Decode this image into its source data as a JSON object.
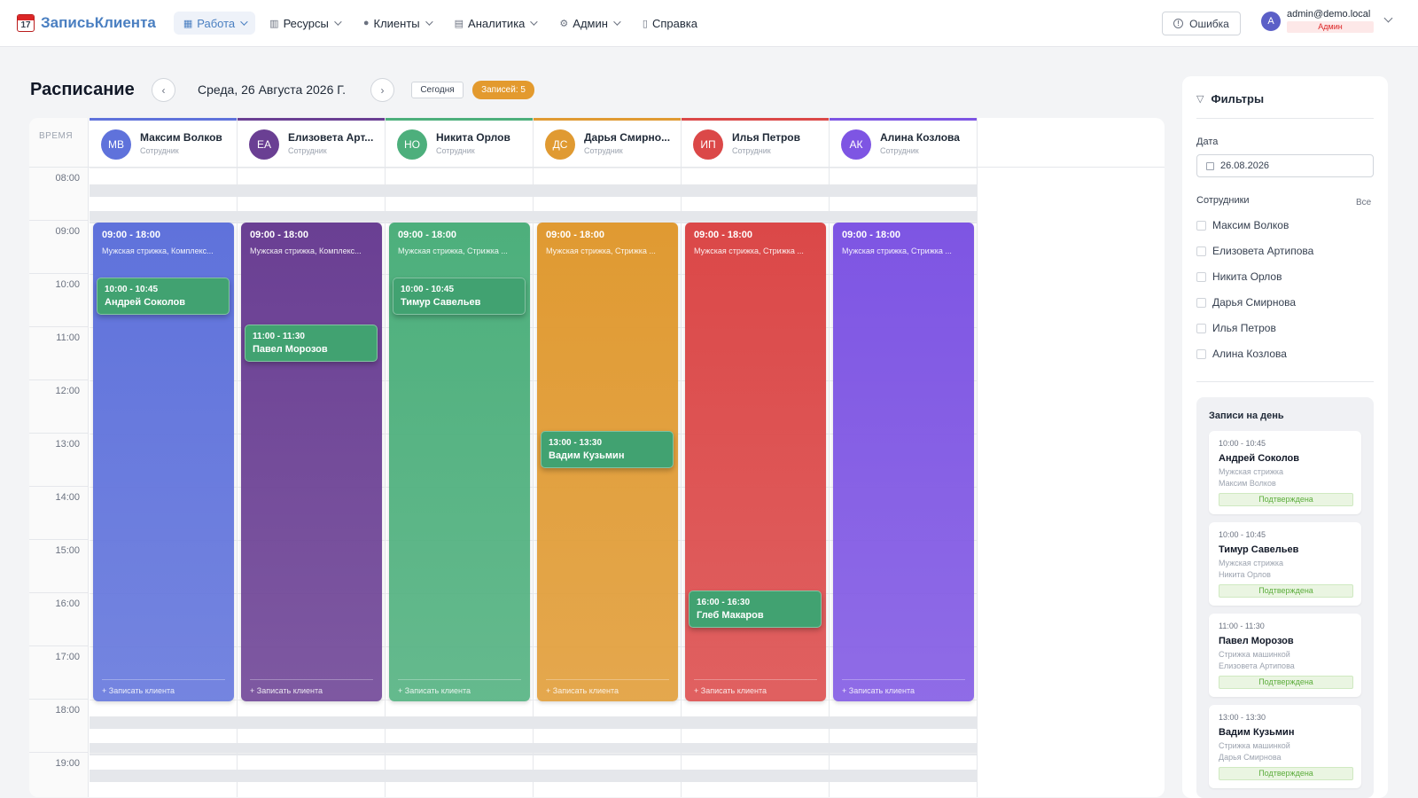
{
  "app": {
    "name": "ЗаписьКлиента",
    "logo_glyph": "17"
  },
  "nav": [
    {
      "label": "Работа",
      "icon": "calendar-icon",
      "active": true
    },
    {
      "label": "Ресурсы",
      "icon": "building-icon",
      "active": false
    },
    {
      "label": "Клиенты",
      "icon": "person-icon",
      "active": false
    },
    {
      "label": "Аналитика",
      "icon": "chart-icon",
      "active": false
    },
    {
      "label": "Админ",
      "icon": "gear-icon",
      "active": false
    },
    {
      "label": "Справка",
      "icon": "document-icon",
      "active": false
    }
  ],
  "error_button": {
    "label": "Ошибка",
    "icon": "info-icon"
  },
  "user": {
    "avatar": "A",
    "email": "admin@demo.local",
    "role": "Админ"
  },
  "schedule": {
    "title": "Расписание",
    "date_label": "Среда, 26 Августа 2026 Г.",
    "today_label": "Сегодня",
    "count_badge": "Записей: 5",
    "time_header": "ВРЕМЯ",
    "hours": [
      "08:00",
      "09:00",
      "10:00",
      "11:00",
      "12:00",
      "13:00",
      "14:00",
      "15:00",
      "16:00",
      "17:00",
      "18:00",
      "19:00"
    ]
  },
  "employees": [
    {
      "initials": "МВ",
      "name": "Максим Волков",
      "role": "Сотрудник",
      "color": "#5f72db",
      "shift": {
        "time": "09:00 - 18:00",
        "services": "Мужская стрижка, Комплекс...",
        "add": "+ Записать клиента"
      },
      "appointments": [
        {
          "time": "10:00 - 10:45",
          "name": "Андрей Соколов",
          "start": 10.0
        }
      ]
    },
    {
      "initials": "ЕА",
      "name": "Елизовета Арт...",
      "role": "Сотрудник",
      "color": "#6a3f93",
      "shift": {
        "time": "09:00 - 18:00",
        "services": "Мужская стрижка, Комплекс...",
        "add": "+ Записать клиента"
      },
      "appointments": [
        {
          "time": "11:00 - 11:30",
          "name": "Павел Морозов",
          "start": 10.88
        }
      ]
    },
    {
      "initials": "НО",
      "name": "Никита Орлов",
      "role": "Сотрудник",
      "color": "#4daf7c",
      "shift": {
        "time": "09:00 - 18:00",
        "services": "Мужская стрижка, Стрижка ...",
        "add": "+ Записать клиента"
      },
      "appointments": [
        {
          "time": "10:00 - 10:45",
          "name": "Тимур Савельев",
          "start": 10.0
        }
      ]
    },
    {
      "initials": "ДС",
      "name": "Дарья Смирно...",
      "role": "Сотрудник",
      "color": "#e09a32",
      "shift": {
        "time": "09:00 - 18:00",
        "services": "Мужская стрижка, Стрижка ...",
        "add": "+ Записать клиента"
      },
      "appointments": [
        {
          "time": "13:00 - 13:30",
          "name": "Вадим Кузьмин",
          "start": 12.88
        }
      ]
    },
    {
      "initials": "ИП",
      "name": "Илья Петров",
      "role": "Сотрудник",
      "color": "#db4848",
      "shift": {
        "time": "09:00 - 18:00",
        "services": "Мужская стрижка, Стрижка ...",
        "add": "+ Записать клиента"
      },
      "appointments": [
        {
          "time": "16:00 - 16:30",
          "name": "Глеб Макаров",
          "start": 15.88
        }
      ]
    },
    {
      "initials": "АК",
      "name": "Алина Козлова",
      "role": "Сотрудник",
      "color": "#7e55e3",
      "shift": {
        "time": "09:00 - 18:00",
        "services": "Мужская стрижка, Стрижка ...",
        "add": "+ Записать клиента"
      },
      "appointments": []
    }
  ],
  "filters": {
    "title": "Фильтры",
    "date_label": "Дата",
    "date_value": "26.08.2026",
    "employees_label": "Сотрудники",
    "all_label": "Все",
    "employees": [
      "Максим Волков",
      "Елизовета Артипова",
      "Никита Орлов",
      "Дарья Смирнова",
      "Илья Петров",
      "Алина Козлова"
    ]
  },
  "day_records": {
    "title": "Записи на день",
    "items": [
      {
        "time": "10:00 - 10:45",
        "name": "Андрей Соколов",
        "service": "Мужская стрижка",
        "employee": "Максим Волков",
        "status": "Подтверждена"
      },
      {
        "time": "10:00 - 10:45",
        "name": "Тимур Савельев",
        "service": "Мужская стрижка",
        "employee": "Никита Орлов",
        "status": "Подтверждена"
      },
      {
        "time": "11:00 - 11:30",
        "name": "Павел Морозов",
        "service": "Стрижка машинкой",
        "employee": "Елизовета Артипова",
        "status": "Подтверждена"
      },
      {
        "time": "13:00 - 13:30",
        "name": "Вадим Кузьмин",
        "service": "Стрижка машинкой",
        "employee": "Дарья Смирнова",
        "status": "Подтверждена"
      }
    ]
  }
}
